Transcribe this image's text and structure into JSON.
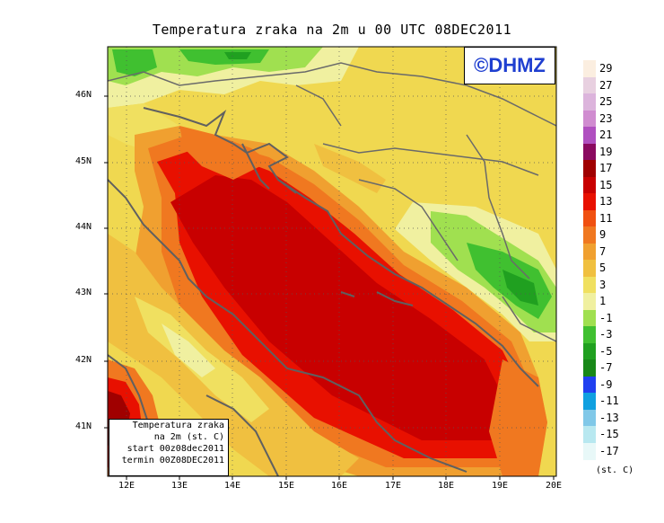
{
  "title": "Temperatura zraka na 2m u 00 UTC 08DEC2011",
  "logo_text": "©DHMZ",
  "info_box": [
    "Temperatura zraka",
    "na 2m (st. C)",
    "start 00z08dec2011",
    "termin 00Z08DEC2011"
  ],
  "y_ticks": [
    "46N",
    "45N",
    "44N",
    "43N",
    "42N",
    "41N"
  ],
  "x_ticks": [
    "12E",
    "13E",
    "14E",
    "15E",
    "16E",
    "17E",
    "18E",
    "19E",
    "20E"
  ],
  "legend": {
    "labels": [
      "29",
      "27",
      "25",
      "23",
      "21",
      "19",
      "17",
      "15",
      "13",
      "11",
      "9",
      "7",
      "5",
      "3",
      "1",
      "-1",
      "-3",
      "-5",
      "-7",
      "-9",
      "-11",
      "-13",
      "-15",
      "-17"
    ],
    "unit": "(st. C)",
    "colors": [
      "#fbeee0",
      "#e8d0e0",
      "#dcb4dc",
      "#d08cd0",
      "#b050c0",
      "#8a0a60",
      "#a00000",
      "#c80000",
      "#e81000",
      "#f05010",
      "#f07820",
      "#f0a030",
      "#f0c040",
      "#f0e060",
      "#f0f0a0",
      "#a0e050",
      "#40c030",
      "#20a020",
      "#188818",
      "#2040f0",
      "#10a0e0",
      "#80c8e8",
      "#b8e8f0",
      "#e8f8f8"
    ]
  },
  "chart_data": {
    "type": "heatmap",
    "title": "Temperatura zraka na 2m u 00 UTC 08DEC2011",
    "x_ticks": [
      "12E",
      "13E",
      "14E",
      "15E",
      "16E",
      "17E",
      "18E",
      "19E",
      "20E"
    ],
    "y_ticks": [
      "46N",
      "45N",
      "44N",
      "43N",
      "42N",
      "41N"
    ],
    "lon_range": [
      11.7,
      20.0
    ],
    "lat_range": [
      40.3,
      46.8
    ],
    "color_scale": [
      29,
      27,
      25,
      23,
      21,
      19,
      17,
      15,
      13,
      11,
      9,
      7,
      5,
      3,
      1,
      -1,
      -3,
      -5,
      -7,
      -9,
      -11,
      -13,
      -15,
      -17
    ],
    "unit": "(st. C)"
  }
}
